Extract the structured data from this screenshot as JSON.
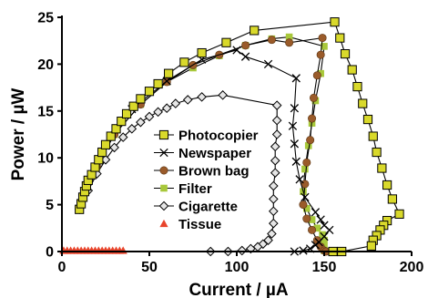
{
  "chart_data": {
    "type": "line",
    "xlabel": "Current / µA",
    "ylabel": "Power / µW",
    "xlim": [
      0,
      200
    ],
    "ylim": [
      0,
      25
    ],
    "x_ticks": [
      0,
      50,
      100,
      150,
      200
    ],
    "y_ticks": [
      0,
      5,
      10,
      15,
      20,
      25
    ],
    "grid": false,
    "legend_position": "center",
    "series": [
      {
        "name": "Photocopier",
        "marker": "square",
        "color": "#d9d92b",
        "points": [
          [
            10,
            4.5
          ],
          [
            11,
            5.1
          ],
          [
            12,
            5.8
          ],
          [
            13,
            6.4
          ],
          [
            14,
            7.0
          ],
          [
            15,
            7.6
          ],
          [
            17,
            8.2
          ],
          [
            19,
            9.0
          ],
          [
            21,
            9.8
          ],
          [
            23,
            10.6
          ],
          [
            25,
            11.4
          ],
          [
            28,
            12.3
          ],
          [
            31,
            13.1
          ],
          [
            34,
            13.9
          ],
          [
            37,
            14.7
          ],
          [
            41,
            15.5
          ],
          [
            45,
            16.3
          ],
          [
            50,
            17.1
          ],
          [
            55,
            17.9
          ],
          [
            61,
            19.0
          ],
          [
            70,
            20.2
          ],
          [
            80,
            21.2
          ],
          [
            94,
            22.3
          ],
          [
            110,
            23.6
          ],
          [
            156,
            24.5
          ],
          [
            159,
            22.8
          ],
          [
            162,
            21.1
          ],
          [
            166,
            19.4
          ],
          [
            169,
            17.6
          ],
          [
            172,
            15.8
          ],
          [
            175,
            14.1
          ],
          [
            178,
            12.3
          ],
          [
            180,
            10.6
          ],
          [
            183,
            8.9
          ],
          [
            186,
            7.1
          ],
          [
            189,
            5.6
          ],
          [
            193,
            4.0
          ],
          [
            186,
            3.3
          ],
          [
            184,
            2.8
          ],
          [
            182,
            2.3
          ],
          [
            180,
            1.7
          ],
          [
            178,
            1.2
          ],
          [
            177,
            0.6
          ],
          [
            160,
            0.0
          ],
          [
            155,
            0.0
          ]
        ]
      },
      {
        "name": "Newspaper",
        "marker": "x",
        "color": "#000000",
        "points": [
          [
            10,
            4.5
          ],
          [
            15,
            7.6
          ],
          [
            25,
            11.3
          ],
          [
            40,
            15.2
          ],
          [
            60,
            18.2
          ],
          [
            80,
            20.5
          ],
          [
            100,
            21.5
          ],
          [
            105,
            20.8
          ],
          [
            118,
            20.0
          ],
          [
            134,
            18.5
          ],
          [
            133,
            15.3
          ],
          [
            132,
            13.4
          ],
          [
            133,
            11.5
          ],
          [
            134,
            9.6
          ],
          [
            136,
            7.7
          ],
          [
            139,
            5.8
          ],
          [
            145,
            4.2
          ],
          [
            148,
            3.4
          ],
          [
            150,
            2.8
          ],
          [
            153,
            2.3
          ],
          [
            150,
            1.6
          ],
          [
            147,
            1.0
          ],
          [
            145,
            0.7
          ],
          [
            142,
            0.3
          ],
          [
            138,
            0.1
          ],
          [
            133,
            0.0
          ]
        ]
      },
      {
        "name": "Brown bag",
        "marker": "circle",
        "color": "#9a5b2a",
        "points": [
          [
            10,
            4.5
          ],
          [
            20,
            9.1
          ],
          [
            30,
            12.5
          ],
          [
            45,
            15.7
          ],
          [
            60,
            18.1
          ],
          [
            75,
            19.9
          ],
          [
            90,
            21.0
          ],
          [
            105,
            22.0
          ],
          [
            120,
            22.6
          ],
          [
            130,
            22.3
          ],
          [
            149,
            22.8
          ],
          [
            148,
            21.0
          ],
          [
            146,
            18.8
          ],
          [
            144,
            16.4
          ],
          [
            143,
            14.2
          ],
          [
            142,
            11.9
          ],
          [
            140,
            9.5
          ],
          [
            139,
            7.2
          ],
          [
            138,
            5.0
          ],
          [
            140,
            3.5
          ],
          [
            143,
            2.3
          ],
          [
            146,
            1.2
          ],
          [
            148,
            0.5
          ],
          [
            150,
            0.1
          ],
          [
            151,
            0.0
          ]
        ]
      },
      {
        "name": "Filter",
        "marker": "square-small",
        "color": "#a8c83a",
        "points": [
          [
            10,
            4.5
          ],
          [
            20,
            9.1
          ],
          [
            30,
            12.5
          ],
          [
            45,
            15.7
          ],
          [
            60,
            18.1
          ],
          [
            75,
            19.6
          ],
          [
            90,
            20.9
          ],
          [
            105,
            22.0
          ],
          [
            120,
            22.7
          ],
          [
            130,
            22.9
          ],
          [
            150,
            21.9
          ],
          [
            148,
            19.0
          ],
          [
            145,
            16.1
          ],
          [
            143,
            13.7
          ],
          [
            141,
            11.3
          ],
          [
            139,
            8.8
          ],
          [
            138,
            6.4
          ],
          [
            140,
            4.6
          ],
          [
            143,
            3.4
          ],
          [
            146,
            2.5
          ],
          [
            149,
            1.8
          ],
          [
            150,
            1.2
          ],
          [
            150,
            0.5
          ],
          [
            150,
            0.1
          ]
        ]
      },
      {
        "name": "Cigarette",
        "marker": "diamond",
        "color": "#000000",
        "points": [
          [
            10,
            4.5
          ],
          [
            15,
            6.5
          ],
          [
            20,
            8.3
          ],
          [
            25,
            9.8
          ],
          [
            30,
            11.1
          ],
          [
            35,
            12.2
          ],
          [
            40,
            13.1
          ],
          [
            45,
            13.8
          ],
          [
            50,
            14.4
          ],
          [
            55,
            14.9
          ],
          [
            60,
            15.3
          ],
          [
            65,
            15.8
          ],
          [
            72,
            16.2
          ],
          [
            80,
            16.5
          ],
          [
            92,
            16.7
          ],
          [
            123,
            15.6
          ],
          [
            123,
            14.0
          ],
          [
            123,
            12.5
          ],
          [
            122,
            11.2
          ],
          [
            122,
            9.7
          ],
          [
            122,
            8.4
          ],
          [
            121,
            7.0
          ],
          [
            121,
            5.6
          ],
          [
            121,
            4.3
          ],
          [
            121,
            3.0
          ],
          [
            120,
            1.9
          ],
          [
            118,
            1.2
          ],
          [
            115,
            0.8
          ],
          [
            112,
            0.5
          ],
          [
            108,
            0.3
          ],
          [
            103,
            0.1
          ],
          [
            95,
            0.0
          ],
          [
            85,
            0.0
          ]
        ]
      },
      {
        "name": "Tissue",
        "marker": "triangle",
        "color": "#e8442b",
        "points": [
          [
            1,
            0.1
          ],
          [
            3,
            0.1
          ],
          [
            5,
            0.1
          ],
          [
            7,
            0.1
          ],
          [
            9,
            0.1
          ],
          [
            11,
            0.1
          ],
          [
            13,
            0.1
          ],
          [
            15,
            0.1
          ],
          [
            17,
            0.1
          ],
          [
            19,
            0.1
          ],
          [
            21,
            0.1
          ],
          [
            23,
            0.1
          ],
          [
            25,
            0.1
          ],
          [
            27,
            0.1
          ],
          [
            29,
            0.1
          ],
          [
            31,
            0.1
          ],
          [
            33,
            0.1
          ],
          [
            35,
            0.1
          ]
        ]
      }
    ]
  }
}
